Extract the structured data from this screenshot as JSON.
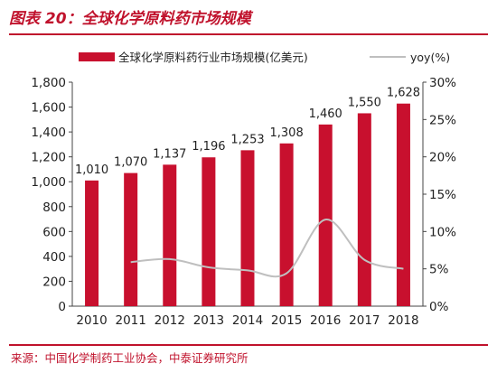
{
  "figure": {
    "title": "图表 20：全球化学原料药市场规模",
    "source": "来源：中国化学制药工业协会，中泰证券研究所"
  },
  "colors": {
    "bar": "#c8102e",
    "line": "#bfbfbf",
    "title": "#c0122c"
  },
  "chart_data": {
    "type": "bar",
    "categories": [
      "2010",
      "2011",
      "2012",
      "2013",
      "2014",
      "2015",
      "2016",
      "2017",
      "2018"
    ],
    "series": [
      {
        "name": "全球化学原料药行业市场规模(亿美元)",
        "type": "bar",
        "axis": "left",
        "values": [
          1010,
          1070,
          1137,
          1196,
          1253,
          1308,
          1460,
          1550,
          1628
        ],
        "labels": [
          "1,010",
          "1,070",
          "1,137",
          "1,196",
          "1,253",
          "1,308",
          "1,460",
          "1,550",
          "1,628"
        ]
      },
      {
        "name": "yoy(%)",
        "type": "line",
        "axis": "right",
        "values": [
          null,
          5.9,
          6.3,
          5.2,
          4.8,
          4.4,
          11.6,
          6.2,
          5.0
        ]
      }
    ],
    "ylim_left": [
      0,
      1800
    ],
    "yticks_left": [
      "0",
      "200",
      "400",
      "600",
      "800",
      "1,000",
      "1,200",
      "1,400",
      "1,600",
      "1,800"
    ],
    "ylim_right": [
      0,
      30
    ],
    "yticks_right": [
      "0%",
      "5%",
      "10%",
      "15%",
      "20%",
      "25%",
      "30%"
    ],
    "legend": "top",
    "grid": false
  }
}
